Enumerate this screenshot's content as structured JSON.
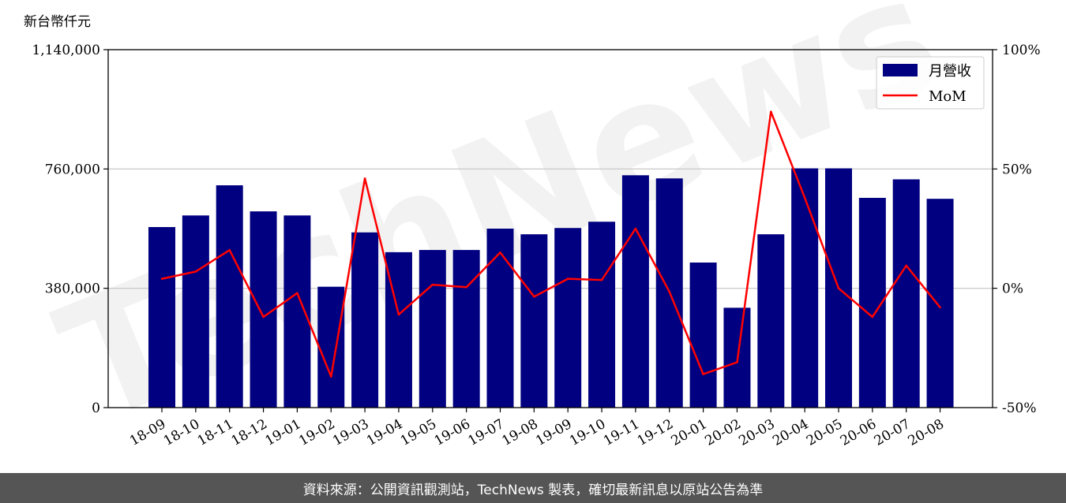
{
  "unit_label": "新台幣仟元",
  "footer": "資料來源：公開資訊觀測站，TechNews 製表，確切最新訊息以原站公告為準",
  "watermark": "TechNews",
  "colors": {
    "bar": "#000080",
    "line": "#ff0000",
    "grid": "#cccccc",
    "footer_bg": "#555555"
  },
  "chart_data": {
    "type": "bar",
    "categories": [
      "18-09",
      "18-10",
      "18-11",
      "18-12",
      "19-01",
      "19-02",
      "19-03",
      "19-04",
      "19-05",
      "19-06",
      "19-07",
      "19-08",
      "19-09",
      "19-10",
      "19-11",
      "19-12",
      "20-01",
      "20-02",
      "20-03",
      "20-04",
      "20-05",
      "20-06",
      "20-07",
      "20-08"
    ],
    "series": [
      {
        "name": "月營收",
        "type": "bar",
        "axis": "left",
        "values": [
          575000,
          612000,
          708000,
          625000,
          612000,
          385000,
          558000,
          495000,
          502000,
          502000,
          570000,
          552000,
          572000,
          592000,
          740000,
          730000,
          462000,
          318000,
          552000,
          762000,
          762000,
          668000,
          727000,
          665000
        ]
      },
      {
        "name": "MoM",
        "type": "line",
        "axis": "right",
        "values": [
          4,
          7,
          16,
          -12,
          -2,
          -37,
          46,
          -11,
          1.5,
          0.5,
          15,
          -3.5,
          4,
          3.5,
          25,
          -1.5,
          -36,
          -31,
          74,
          38,
          0,
          -12,
          9.5,
          -8
        ]
      }
    ],
    "yticks_left": [
      "0",
      "380,000",
      "760,000",
      "1,140,000"
    ],
    "ylim_left": [
      0,
      1140000
    ],
    "yticks_right": [
      "-50%",
      "0%",
      "50%",
      "100%"
    ],
    "ylim_right": [
      -50,
      100
    ],
    "grid": "horizontal",
    "legend": "top-right"
  }
}
